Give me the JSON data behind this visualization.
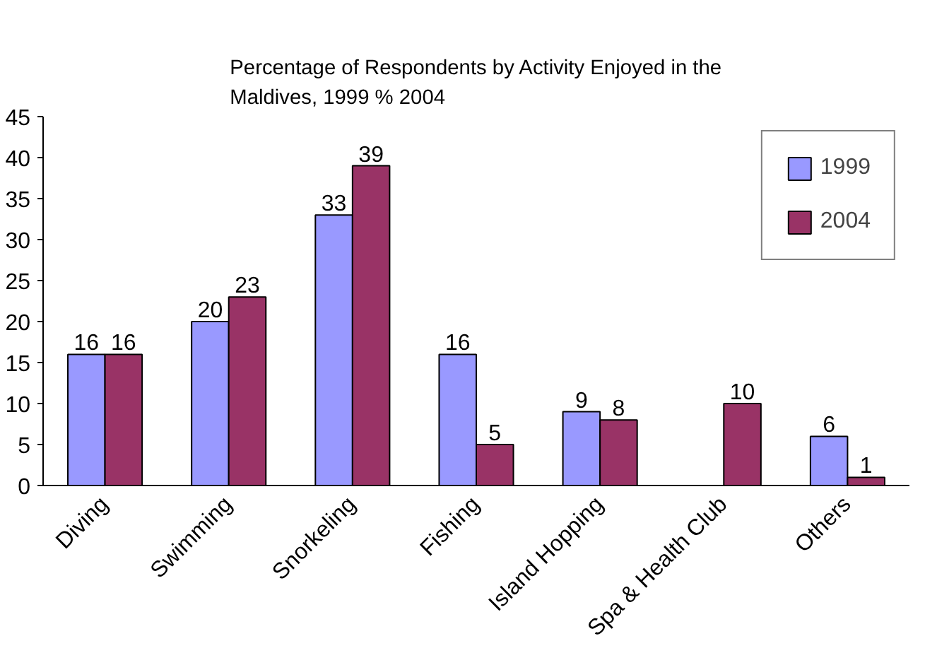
{
  "chart_data": {
    "type": "bar",
    "title": "Percentage of Respondents by Activity Enjoyed in the Maldives, 1999 % 2004",
    "categories": [
      "Diving",
      "Swimming",
      "Snorkeling",
      "Fishing",
      "Island Hopping",
      "Spa & Health Club",
      "Others"
    ],
    "series": [
      {
        "name": "1999",
        "color": "#9999ff",
        "values": [
          16,
          20,
          33,
          16,
          9,
          null,
          6
        ]
      },
      {
        "name": "2004",
        "color": "#993366",
        "values": [
          16,
          23,
          39,
          5,
          8,
          10,
          1
        ]
      }
    ],
    "ylim": [
      0,
      45
    ],
    "yticks": [
      0,
      5,
      10,
      15,
      20,
      25,
      30,
      35,
      40,
      45
    ],
    "grid": false,
    "legend": "top right",
    "data_labels": true
  }
}
